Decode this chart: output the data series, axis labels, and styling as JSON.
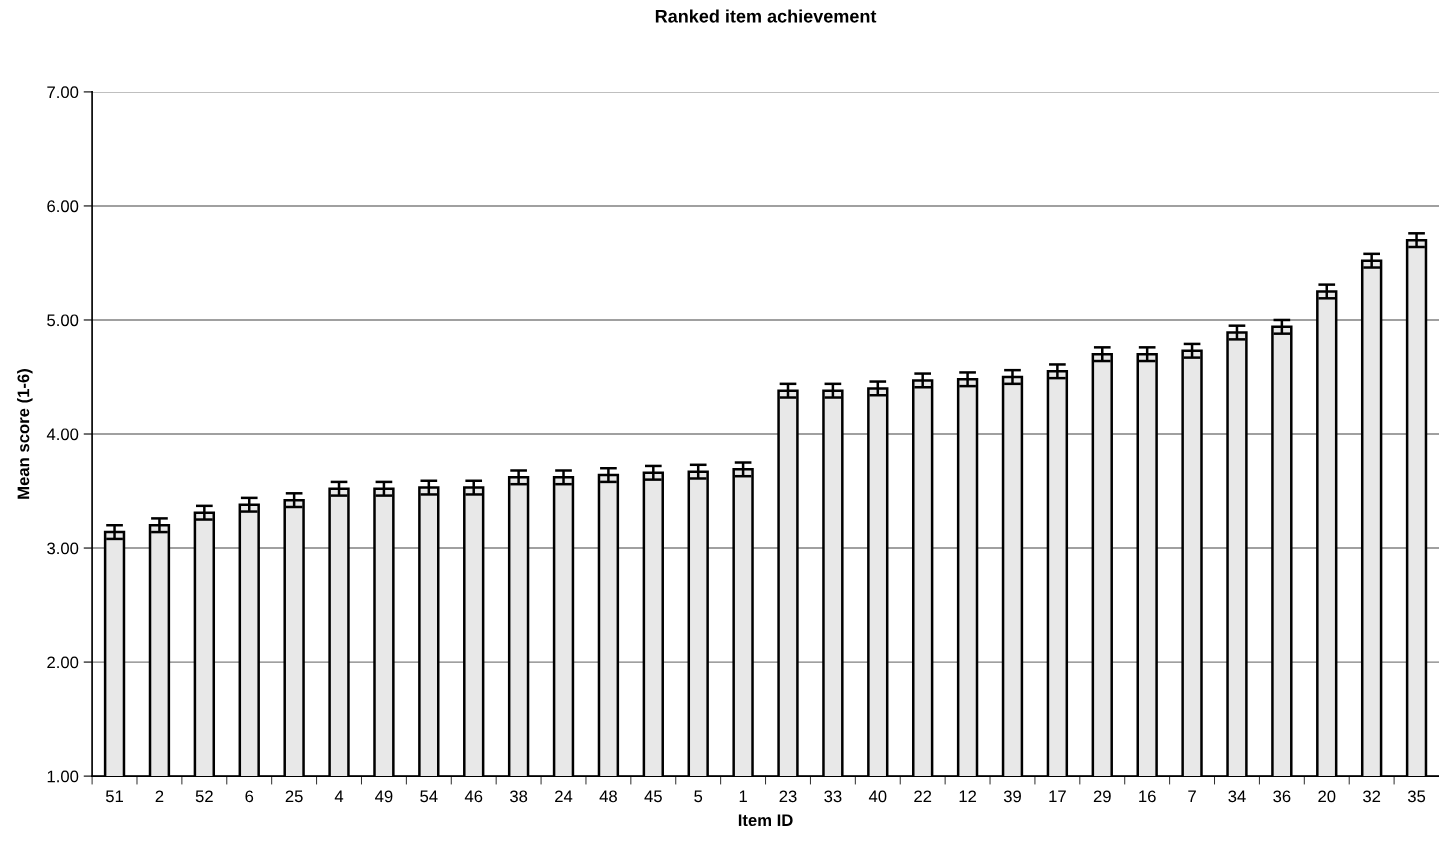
{
  "chart_data": {
    "type": "bar",
    "title": "Ranked item achievement",
    "xlabel": "Item ID",
    "ylabel": "Mean score (1-6)",
    "categories": [
      "51",
      "2",
      "52",
      "6",
      "25",
      "4",
      "49",
      "54",
      "46",
      "38",
      "24",
      "48",
      "45",
      "5",
      "1",
      "23",
      "33",
      "40",
      "22",
      "12",
      "39",
      "17",
      "29",
      "16",
      "7",
      "34",
      "36",
      "20",
      "32",
      "35"
    ],
    "values": [
      3.14,
      3.2,
      3.31,
      3.38,
      3.42,
      3.52,
      3.52,
      3.53,
      3.53,
      3.62,
      3.62,
      3.64,
      3.66,
      3.67,
      3.69,
      4.38,
      4.38,
      4.4,
      4.47,
      4.48,
      4.5,
      4.55,
      4.7,
      4.7,
      4.73,
      4.89,
      4.94,
      5.25,
      5.52,
      5.7
    ],
    "errors": [
      0.06,
      0.06,
      0.06,
      0.06,
      0.06,
      0.06,
      0.06,
      0.06,
      0.06,
      0.06,
      0.06,
      0.06,
      0.06,
      0.06,
      0.06,
      0.06,
      0.06,
      0.06,
      0.06,
      0.06,
      0.06,
      0.06,
      0.06,
      0.06,
      0.06,
      0.06,
      0.06,
      0.06,
      0.06,
      0.06
    ],
    "color": "#e8e8e8",
    "ylim": [
      1,
      7
    ],
    "yticks": [
      {
        "value": 1,
        "label": "1.00"
      },
      {
        "value": 2,
        "label": "2.00"
      },
      {
        "value": 3,
        "label": "3.00"
      },
      {
        "value": 4,
        "label": "4.00"
      },
      {
        "value": 5,
        "label": "5.00"
      },
      {
        "value": 6,
        "label": "6.00"
      },
      {
        "value": 7,
        "label": "7.00"
      }
    ],
    "grid": "y"
  }
}
